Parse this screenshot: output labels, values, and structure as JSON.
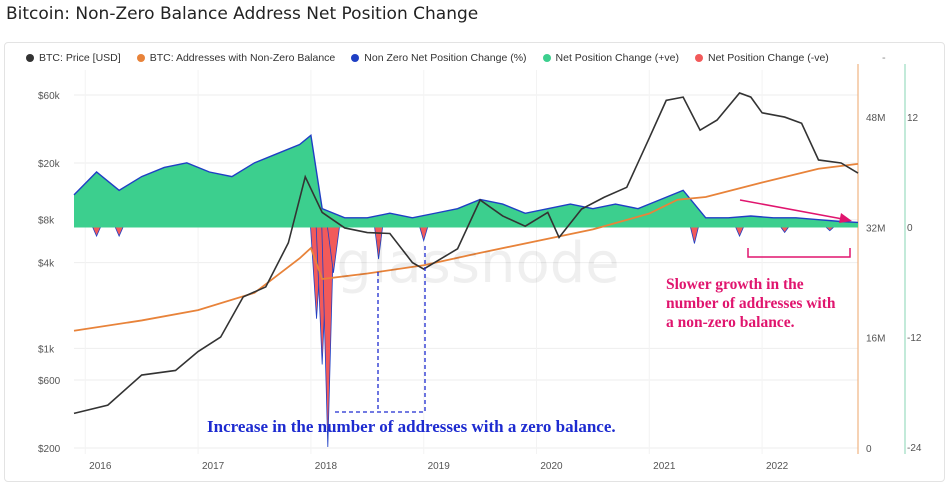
{
  "title": "Bitcoin: Non-Zero Balance Address Net Position Change",
  "legend": [
    {
      "label": "BTC: Price [USD]",
      "color": "#333333"
    },
    {
      "label": "BTC: Addresses with Non-Zero Balance",
      "color": "#e8833a"
    },
    {
      "label": "Non Zero Net Position Change (%)",
      "color": "#1f3fc4"
    },
    {
      "label": "Net Position Change (+ve)",
      "color": "#3ccf8e"
    },
    {
      "label": "Net Position Change (-ve)",
      "color": "#f25a5a"
    }
  ],
  "legend_extra": "-",
  "watermark": "glassnode",
  "annotations": {
    "zero_balance": "Increase in the number of addresses with a zero balance.",
    "slower_growth": [
      "Slower growth in the",
      "number of addresses with",
      "a non-zero balance."
    ]
  },
  "chart_data": {
    "type": "line",
    "x_ticks": [
      "2016",
      "2017",
      "2018",
      "2019",
      "2020",
      "2021",
      "2022"
    ],
    "y_left_ticks": [
      "$60k",
      "$20k",
      "$8k",
      "$4k",
      "$1k",
      "$600",
      "$200"
    ],
    "y_left_scale": "log",
    "y_mid_ticks": [
      "48M",
      "32M",
      "16M",
      "0"
    ],
    "y_right_ticks": [
      "12",
      "0",
      "-12",
      "-24"
    ],
    "grid": true,
    "series": [
      {
        "name": "BTC: Price [USD]",
        "x": [
          2015.9,
          2016.2,
          2016.5,
          2016.8,
          2017.0,
          2017.2,
          2017.4,
          2017.6,
          2017.8,
          2017.95,
          2018.1,
          2018.3,
          2018.5,
          2018.7,
          2018.9,
          2019.0,
          2019.3,
          2019.5,
          2019.7,
          2019.9,
          2020.1,
          2020.2,
          2020.4,
          2020.6,
          2020.8,
          2021.0,
          2021.15,
          2021.3,
          2021.45,
          2021.6,
          2021.8,
          2021.9,
          2022.0,
          2022.2,
          2022.35,
          2022.5,
          2022.7,
          2022.85
        ],
        "y": [
          350,
          400,
          650,
          700,
          950,
          1200,
          2300,
          2700,
          5500,
          16000,
          9000,
          7000,
          6500,
          6400,
          4000,
          3600,
          5000,
          11000,
          8500,
          7200,
          9000,
          6000,
          9500,
          11500,
          13500,
          30000,
          55000,
          58000,
          34000,
          40000,
          62000,
          58000,
          45000,
          42000,
          38000,
          21000,
          20000,
          17000
        ]
      },
      {
        "name": "BTC: Addresses with Non-Zero Balance",
        "x": [
          2015.9,
          2016.5,
          2017.0,
          2017.5,
          2017.9,
          2018.0,
          2018.1,
          2018.5,
          2019.0,
          2019.5,
          2020.0,
          2020.5,
          2021.0,
          2021.25,
          2021.5,
          2022.0,
          2022.5,
          2022.85
        ],
        "y": [
          17.0,
          18.5,
          20.0,
          22.5,
          27.5,
          29.0,
          24.5,
          25.3,
          26.5,
          28.3,
          30.0,
          31.7,
          34.0,
          36.0,
          36.4,
          38.5,
          40.5,
          41.2
        ]
      },
      {
        "name": "Net Position Change (+ve)",
        "x": [
          2015.9,
          2016.1,
          2016.3,
          2016.5,
          2016.7,
          2016.9,
          2017.1,
          2017.3,
          2017.5,
          2017.7,
          2017.9,
          2018.0,
          2018.1,
          2018.3,
          2018.5,
          2018.7,
          2018.9,
          2019.1,
          2019.3,
          2019.5,
          2019.7,
          2019.9,
          2020.1,
          2020.3,
          2020.5,
          2020.7,
          2020.9,
          2021.1,
          2021.3,
          2021.5,
          2021.7,
          2021.9,
          2022.1,
          2022.3,
          2022.5,
          2022.7,
          2022.85
        ],
        "y": [
          3.5,
          6.0,
          4.0,
          5.5,
          6.5,
          7.0,
          6.0,
          5.5,
          7.0,
          8.0,
          9.0,
          10.0,
          2.0,
          1.0,
          1.0,
          1.5,
          1.0,
          1.5,
          2.0,
          3.0,
          2.5,
          1.5,
          2.0,
          2.5,
          2.0,
          2.5,
          2.0,
          3.0,
          4.0,
          1.0,
          1.0,
          1.2,
          1.0,
          1.0,
          0.8,
          0.6,
          0.5
        ]
      },
      {
        "name": "Net Position Change (-ve)",
        "x": [
          2016.1,
          2016.3,
          2018.05,
          2018.1,
          2018.15,
          2018.2,
          2018.6,
          2019.0,
          2021.4,
          2021.8,
          2022.2,
          2022.6
        ],
        "y": [
          -1.0,
          -1.0,
          -10.0,
          -15.0,
          -24.0,
          -5.0,
          -3.5,
          -1.5,
          -1.8,
          -1.0,
          -0.6,
          -0.4
        ]
      }
    ]
  }
}
